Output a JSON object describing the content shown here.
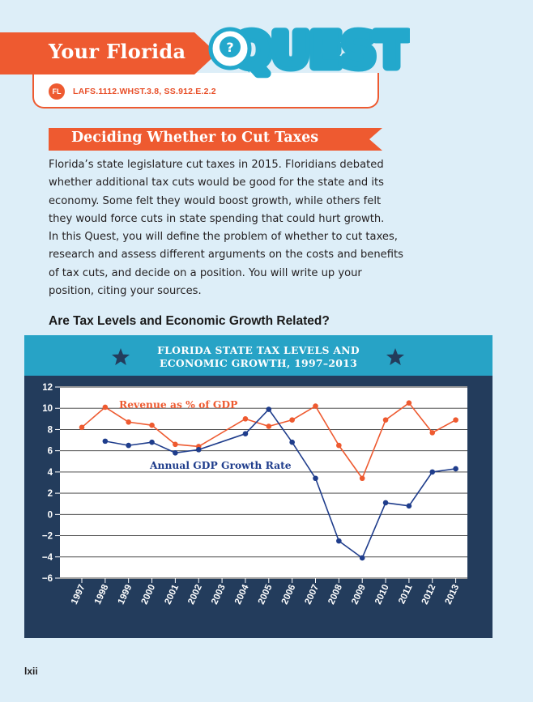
{
  "quest": {
    "banner_text": "Your Florida",
    "logo_text": "QUEST!",
    "badge": "FL",
    "standards": "LAFS.1112.WHST.3.8, SS.912.E.2.2"
  },
  "section": {
    "title": "Deciding Whether to Cut Taxes",
    "paragraph": "Florida’s state legislature cut taxes in 2015. Floridians debated\nwhether additional tax cuts would be good for the state and its\neconomy. Some felt they would boost growth, while others felt\nthey would force cuts in state spending that could hurt growth.\nIn this Quest, you will define the problem of whether to cut taxes,\nresearch and assess different arguments on the costs and benefits\nof tax cuts, and decide on a position. You will write up your\nposition, citing your sources.",
    "subheading": "Are Tax Levels and Economic Growth Related?"
  },
  "chart_data": {
    "type": "line",
    "title_line1": "FLORIDA STATE TAX LEVELS AND",
    "title_line2": "ECONOMIC GROWTH, 1997–2013",
    "x": [
      1997,
      1998,
      1999,
      2000,
      2001,
      2002,
      2003,
      2004,
      2005,
      2006,
      2007,
      2008,
      2009,
      2010,
      2011,
      2012,
      2013
    ],
    "y_ticks": [
      "12",
      "10",
      "8",
      "6",
      "4",
      "2",
      "0",
      "−2",
      "−4",
      "−6"
    ],
    "ylim": [
      -6,
      12
    ],
    "grid": true,
    "series": [
      {
        "name": "Revenue as % of GDP",
        "color": "#ee5a30",
        "values": [
          8.2,
          10.1,
          8.7,
          8.4,
          6.6,
          6.4,
          null,
          9.0,
          8.3,
          8.9,
          10.2,
          6.5,
          3.4,
          8.9,
          10.5,
          7.7,
          8.9
        ]
      },
      {
        "name": "Annual GDP Growth Rate",
        "color": "#1f3d8c",
        "values": [
          null,
          6.9,
          6.5,
          6.8,
          5.8,
          6.1,
          null,
          7.6,
          9.9,
          6.8,
          3.4,
          -2.5,
          -4.1,
          1.1,
          0.8,
          4.0,
          4.3
        ]
      }
    ],
    "colors": {
      "frame": "#233c5c",
      "title_band": "#27a3c6",
      "plot_bg": "#ffffff",
      "star": "#233c5c"
    }
  },
  "page": {
    "number": "lxii"
  }
}
